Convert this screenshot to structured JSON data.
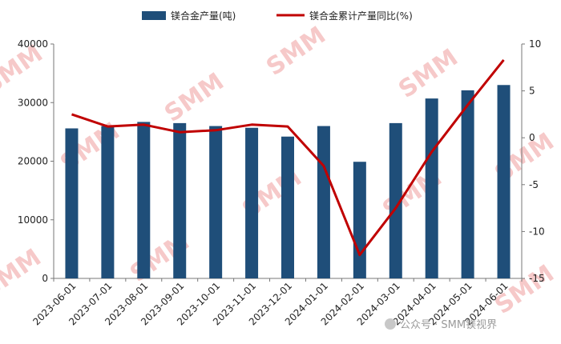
{
  "chart_data": {
    "type": "bar+line",
    "title": "",
    "categories": [
      "2023-06-01",
      "2023-07-01",
      "2023-08-01",
      "2023-09-01",
      "2023-10-01",
      "2023-11-01",
      "2023-12-01",
      "2024-01-01",
      "2024-02-01",
      "2024-03-01",
      "2024-04-01",
      "2024-05-01",
      "2024-06-01"
    ],
    "series": [
      {
        "name": "镁合金产量(吨)",
        "type": "bar",
        "axis": "left",
        "color": "#1f4e79",
        "values": [
          25600,
          26000,
          26700,
          26500,
          26000,
          25700,
          24200,
          26000,
          19900,
          26500,
          30700,
          32100,
          33000
        ]
      },
      {
        "name": "镁合金累计产量同比(%)",
        "type": "line",
        "axis": "right",
        "color": "#c00000",
        "values": [
          2.5,
          1.2,
          1.4,
          0.6,
          0.8,
          1.4,
          1.2,
          -3.0,
          -12.5,
          -7.5,
          -1.5,
          3.5,
          8.3
        ]
      }
    ],
    "y_left": {
      "min": 0,
      "max": 40000,
      "ticks": [
        "0",
        "10000",
        "20000",
        "30000",
        "40000"
      ]
    },
    "y_right": {
      "min": -15,
      "max": 10,
      "ticks": [
        "-15",
        "-10",
        "-5",
        "0",
        "5",
        "10"
      ]
    },
    "legend_position": "top",
    "grid": false
  },
  "watermark": "SMM",
  "footer_text": "公众号 · SMM镁视界"
}
